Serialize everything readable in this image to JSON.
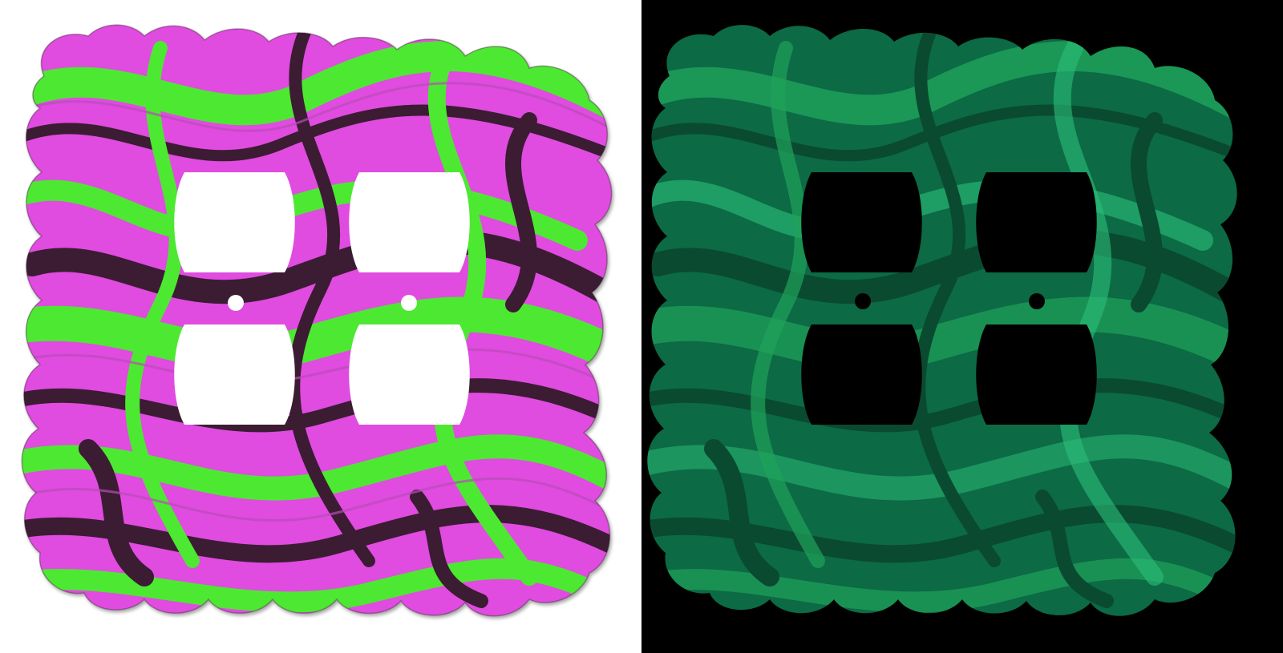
{
  "product_views": [
    {
      "id": "day",
      "background_color": "#ffffff",
      "hole_color": "#ffffff",
      "plate_base_color": "#e04ce0",
      "swirl_colors": [
        "#4ee832",
        "#3a1f33",
        "#e04ce0",
        "#b84cb8"
      ]
    },
    {
      "id": "glow",
      "background_color": "#000000",
      "hole_color": "#000000",
      "plate_base_color": "#0c6a45",
      "swirl_colors": [
        "#1fa35a",
        "#0a4a30",
        "#2bc07a",
        "#0e5c3c"
      ]
    }
  ],
  "outlets": {
    "count": 2,
    "receptacles_per_outlet": 2
  },
  "screw_holes": 2
}
